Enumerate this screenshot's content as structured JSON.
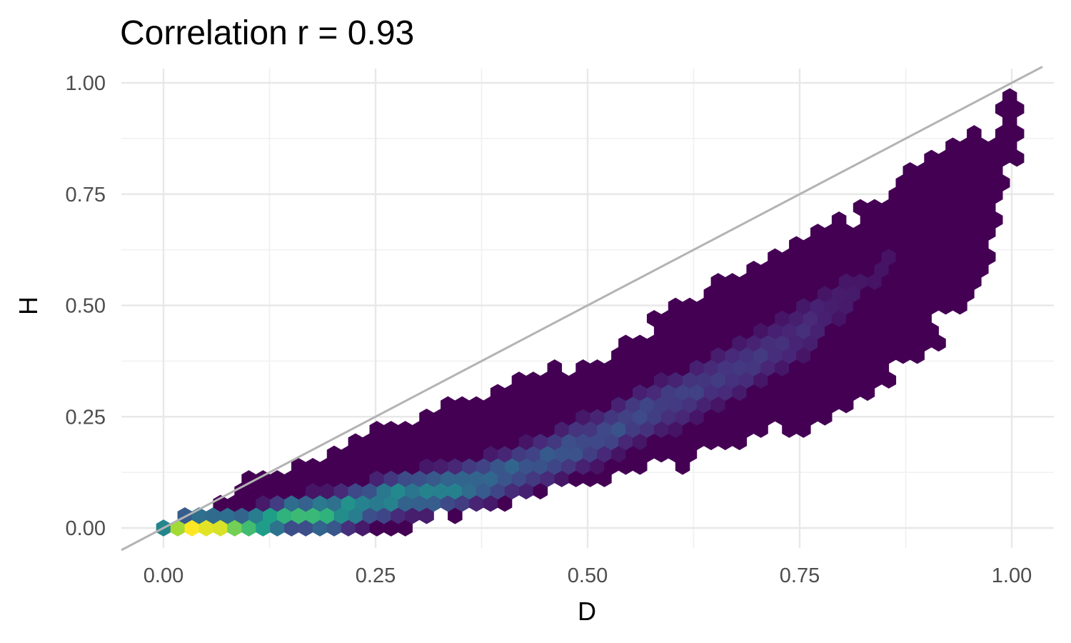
{
  "chart_data": {
    "type": "hexbin",
    "title": "Correlation r = 0.93",
    "xlabel": "D",
    "ylabel": "H",
    "xlim": [
      -0.05,
      1.05
    ],
    "ylim": [
      -0.05,
      1.03
    ],
    "x_ticks": [
      0.0,
      0.25,
      0.5,
      0.75,
      1.0
    ],
    "y_ticks": [
      0.0,
      0.25,
      0.5,
      0.75,
      1.0
    ],
    "x_tick_labels": [
      "0.00",
      "0.25",
      "0.50",
      "0.75",
      "1.00"
    ],
    "y_tick_labels": [
      "0.00",
      "0.25",
      "0.50",
      "0.75",
      "1.00"
    ],
    "grid": true,
    "legend": "none",
    "reference_line": {
      "slope": 1,
      "intercept": 0,
      "color": "#b3b3b3"
    },
    "colormap": "viridis",
    "density_ridge": [
      [
        0.0,
        0.0,
        0.55
      ],
      [
        0.02,
        0.0,
        1.0
      ],
      [
        0.04,
        0.0,
        0.95
      ],
      [
        0.06,
        0.0,
        0.88
      ],
      [
        0.08,
        0.0,
        0.82
      ],
      [
        0.1,
        0.0,
        0.7
      ],
      [
        0.12,
        0.01,
        0.62
      ],
      [
        0.15,
        0.03,
        0.6
      ],
      [
        0.18,
        0.03,
        0.65
      ],
      [
        0.2,
        0.03,
        0.62
      ],
      [
        0.23,
        0.05,
        0.5
      ],
      [
        0.27,
        0.07,
        0.5
      ],
      [
        0.3,
        0.08,
        0.45
      ],
      [
        0.34,
        0.09,
        0.42
      ],
      [
        0.38,
        0.11,
        0.36
      ],
      [
        0.42,
        0.13,
        0.3
      ],
      [
        0.47,
        0.17,
        0.27
      ],
      [
        0.51,
        0.2,
        0.25
      ],
      [
        0.56,
        0.25,
        0.22
      ],
      [
        0.61,
        0.29,
        0.2
      ],
      [
        0.66,
        0.34,
        0.17
      ],
      [
        0.71,
        0.39,
        0.15
      ],
      [
        0.76,
        0.45,
        0.12
      ],
      [
        0.8,
        0.52,
        0.08
      ],
      [
        0.85,
        0.59,
        0.05
      ],
      [
        0.9,
        0.68,
        0.03
      ]
    ],
    "envelope_lower": [
      [
        0.0,
        0.0
      ],
      [
        0.18,
        -0.01
      ],
      [
        0.28,
        0.01
      ],
      [
        0.31,
        0.02
      ],
      [
        0.4,
        0.06
      ],
      [
        0.45,
        0.08
      ],
      [
        0.55,
        0.13
      ],
      [
        0.6,
        0.14
      ],
      [
        0.7,
        0.2
      ],
      [
        0.75,
        0.23
      ],
      [
        0.8,
        0.26
      ],
      [
        0.85,
        0.33
      ],
      [
        0.9,
        0.4
      ],
      [
        0.93,
        0.45
      ],
      [
        0.96,
        0.54
      ],
      [
        0.98,
        0.66
      ],
      [
        1.0,
        0.84
      ]
    ],
    "envelope_upper": [
      [
        0.0,
        0.0
      ],
      [
        0.05,
        0.04
      ],
      [
        0.1,
        0.1
      ],
      [
        0.15,
        0.13
      ],
      [
        0.2,
        0.17
      ],
      [
        0.25,
        0.21
      ],
      [
        0.3,
        0.25
      ],
      [
        0.35,
        0.29
      ],
      [
        0.4,
        0.32
      ],
      [
        0.45,
        0.35
      ],
      [
        0.5,
        0.37
      ],
      [
        0.55,
        0.42
      ],
      [
        0.6,
        0.49
      ],
      [
        0.65,
        0.54
      ],
      [
        0.7,
        0.59
      ],
      [
        0.75,
        0.64
      ],
      [
        0.8,
        0.69
      ],
      [
        0.85,
        0.75
      ],
      [
        0.9,
        0.84
      ],
      [
        0.95,
        0.9
      ],
      [
        0.98,
        0.92
      ],
      [
        1.0,
        0.98
      ]
    ],
    "empty_cells": [
      [
        0.97,
        0.9
      ],
      [
        0.92,
        0.46
      ]
    ]
  }
}
